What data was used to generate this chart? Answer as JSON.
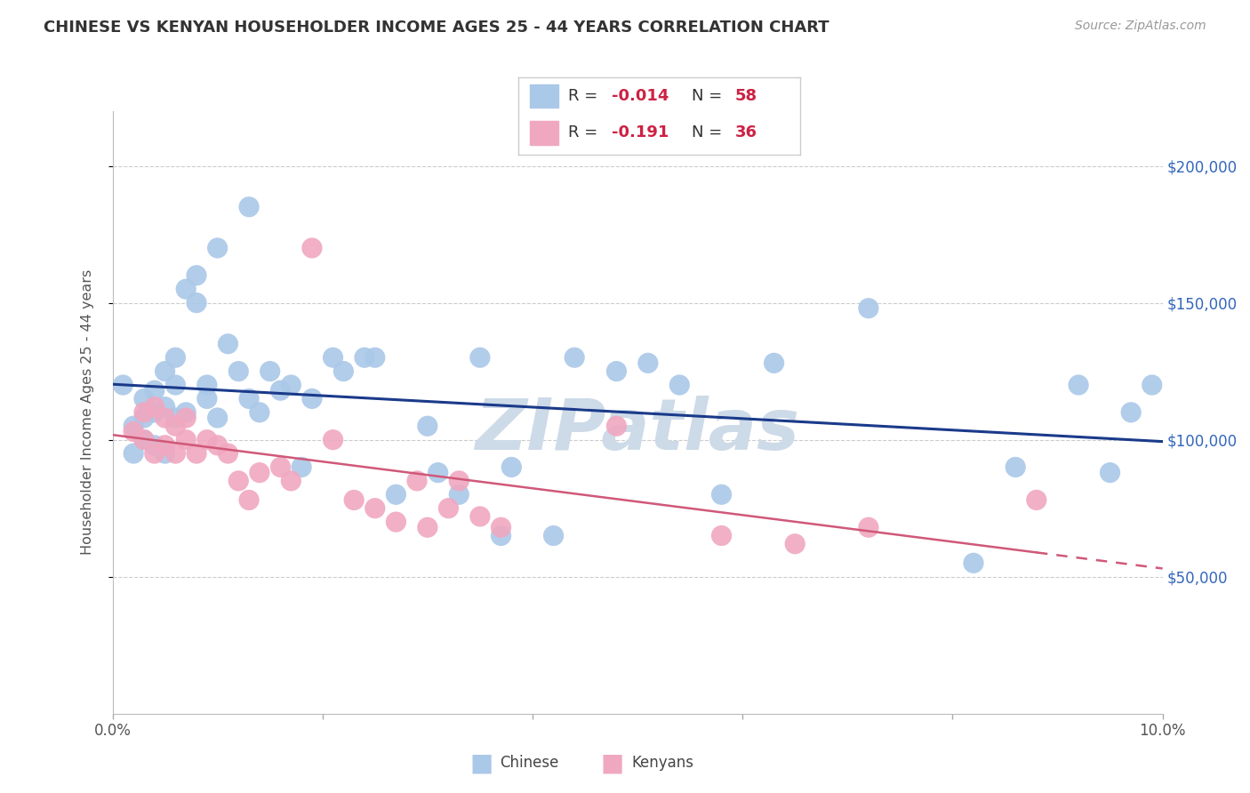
{
  "title": "CHINESE VS KENYAN HOUSEHOLDER INCOME AGES 25 - 44 YEARS CORRELATION CHART",
  "source": "Source: ZipAtlas.com",
  "ylabel": "Householder Income Ages 25 - 44 years",
  "xlim": [
    0.0,
    0.1
  ],
  "ylim": [
    0,
    220000
  ],
  "ytick_positions": [
    50000,
    100000,
    150000,
    200000
  ],
  "ytick_labels": [
    "$50,000",
    "$100,000",
    "$150,000",
    "$200,000"
  ],
  "xtick_positions": [
    0.0,
    0.02,
    0.04,
    0.06,
    0.08,
    0.1
  ],
  "xtick_labels": [
    "0.0%",
    "",
    "",
    "",
    "",
    "10.0%"
  ],
  "chinese_R": -0.014,
  "chinese_N": 58,
  "kenyan_R": -0.191,
  "kenyan_N": 36,
  "chinese_scatter_color": "#aac8e8",
  "kenyan_scatter_color": "#f0a8c0",
  "chinese_line_color": "#1a3a8a",
  "kenyan_line_color": "#d05878",
  "bg_color": "#ffffff",
  "grid_color": "#cccccc",
  "watermark_text": "ZIPatlas",
  "watermark_color": "#cddae8",
  "title_color": "#333333",
  "source_color": "#999999",
  "ytick_label_color": "#3366bb",
  "legend_text_color": "#333333",
  "legend_value_color": "#cc2244",
  "chinese_x": [
    0.001,
    0.002,
    0.002,
    0.003,
    0.003,
    0.003,
    0.004,
    0.004,
    0.004,
    0.005,
    0.005,
    0.005,
    0.006,
    0.006,
    0.006,
    0.007,
    0.007,
    0.008,
    0.008,
    0.009,
    0.009,
    0.01,
    0.01,
    0.011,
    0.012,
    0.013,
    0.013,
    0.014,
    0.015,
    0.016,
    0.017,
    0.018,
    0.019,
    0.021,
    0.022,
    0.024,
    0.025,
    0.027,
    0.03,
    0.031,
    0.033,
    0.035,
    0.037,
    0.038,
    0.042,
    0.044,
    0.048,
    0.051,
    0.054,
    0.058,
    0.063,
    0.072,
    0.082,
    0.086,
    0.092,
    0.095,
    0.097,
    0.099
  ],
  "chinese_y": [
    120000,
    105000,
    95000,
    115000,
    108000,
    100000,
    118000,
    110000,
    98000,
    125000,
    112000,
    95000,
    130000,
    120000,
    108000,
    155000,
    110000,
    160000,
    150000,
    120000,
    115000,
    170000,
    108000,
    135000,
    125000,
    115000,
    185000,
    110000,
    125000,
    118000,
    120000,
    90000,
    115000,
    130000,
    125000,
    130000,
    130000,
    80000,
    105000,
    88000,
    80000,
    130000,
    65000,
    90000,
    65000,
    130000,
    125000,
    128000,
    120000,
    80000,
    128000,
    148000,
    55000,
    90000,
    120000,
    88000,
    110000,
    120000
  ],
  "kenyan_x": [
    0.002,
    0.003,
    0.003,
    0.004,
    0.004,
    0.005,
    0.005,
    0.006,
    0.006,
    0.007,
    0.007,
    0.008,
    0.009,
    0.01,
    0.011,
    0.012,
    0.013,
    0.014,
    0.016,
    0.017,
    0.019,
    0.021,
    0.023,
    0.025,
    0.027,
    0.029,
    0.03,
    0.032,
    0.033,
    0.035,
    0.037,
    0.048,
    0.058,
    0.065,
    0.072,
    0.088
  ],
  "kenyan_y": [
    103000,
    110000,
    100000,
    112000,
    95000,
    108000,
    98000,
    105000,
    95000,
    108000,
    100000,
    95000,
    100000,
    98000,
    95000,
    85000,
    78000,
    88000,
    90000,
    85000,
    170000,
    100000,
    78000,
    75000,
    70000,
    85000,
    68000,
    75000,
    85000,
    72000,
    68000,
    105000,
    65000,
    62000,
    68000,
    78000
  ]
}
